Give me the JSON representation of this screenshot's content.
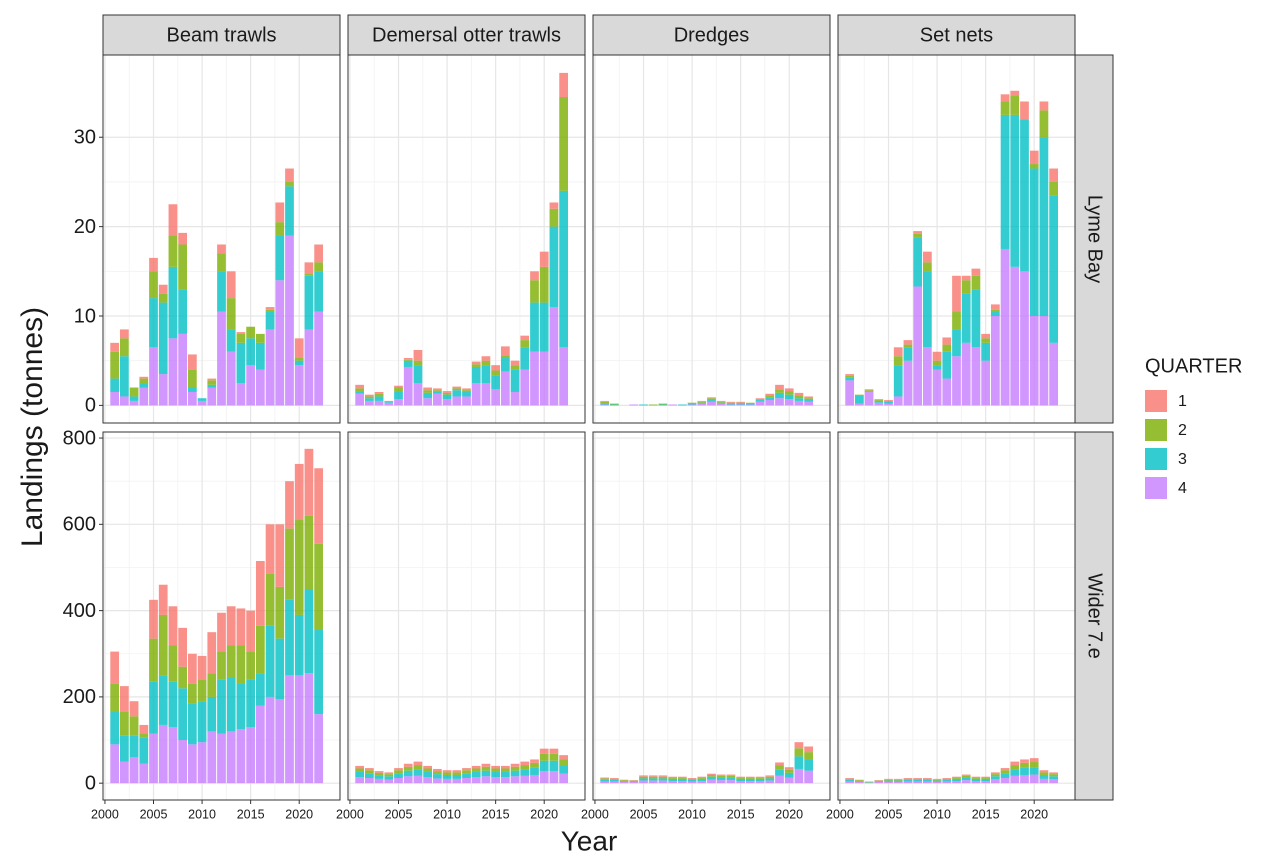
{
  "chart_data": {
    "type": "bar",
    "stacked": true,
    "x_label": "Year",
    "y_label": "Landings (tonnes)",
    "legend_title": "QUARTER",
    "legend_position": "right",
    "grid": true,
    "x": [
      2001,
      2002,
      2003,
      2004,
      2005,
      2006,
      2007,
      2008,
      2009,
      2010,
      2011,
      2012,
      2013,
      2014,
      2015,
      2016,
      2017,
      2018,
      2019,
      2020,
      2021,
      2022
    ],
    "xlim": [
      1999.8,
      2024.2
    ],
    "xticks": [
      2000,
      2005,
      2010,
      2015,
      2020
    ],
    "series": [
      {
        "name": "1",
        "color": "#F8766D"
      },
      {
        "name": "2",
        "color": "#7CAE00"
      },
      {
        "name": "3",
        "color": "#00BFC4"
      },
      {
        "name": "4",
        "color": "#C77CFF"
      }
    ],
    "columns": [
      "Beam trawls",
      "Demersal otter trawls",
      "Dredges",
      "Set nets"
    ],
    "rows": [
      {
        "label": "Lyme Bay",
        "ylim": [
          -1.97,
          39.2
        ],
        "yticks": [
          0,
          10,
          20,
          30
        ],
        "panels": [
          {
            "series": [
              {
                "values": [
                  1,
                  1,
                  0,
                  0.2,
                  1.5,
                  1,
                  3.5,
                  1.3,
                  1.7,
                  0,
                  0.2,
                  1,
                  3,
                  0.2,
                  0,
                  0,
                  0.3,
                  2.2,
                  1.5,
                  2.2,
                  1.3,
                  2
                ]
              },
              {
                "values": [
                  3,
                  2,
                  1,
                  0.5,
                  3,
                  1,
                  3.5,
                  5,
                  2,
                  0,
                  0.5,
                  2,
                  3.5,
                  1,
                  1.3,
                  1,
                  0.2,
                  1.5,
                  0.5,
                  0.3,
                  0.2,
                  1
                ]
              },
              {
                "values": [
                  1.5,
                  4.5,
                  0.5,
                  0.5,
                  5.5,
                  8,
                  8,
                  5,
                  0.5,
                  0.3,
                  0.3,
                  4.5,
                  2.5,
                  4.5,
                  3,
                  3,
                  2,
                  5,
                  5.5,
                  0.5,
                  6,
                  4.5
                ]
              },
              {
                "values": [
                  1.5,
                  1,
                  0.5,
                  2,
                  6.5,
                  3.5,
                  7.5,
                  8,
                  1.5,
                  0.5,
                  2,
                  10.5,
                  6,
                  2.5,
                  4.5,
                  4,
                  8.5,
                  14,
                  19,
                  4.5,
                  8.5,
                  10.5
                ]
              }
            ]
          },
          {
            "series": [
              {
                "values": [
                  0.4,
                  0.2,
                  0.2,
                  0,
                  0.2,
                  0.2,
                  1.2,
                  0.3,
                  0.2,
                  0.2,
                  0.2,
                  0.2,
                  0.3,
                  0.5,
                  0.6,
                  1,
                  0.5,
                  0.5,
                  1,
                  1.7,
                  0.7,
                  2.7
                ]
              },
              {
                "values": [
                  0.3,
                  0.2,
                  0.3,
                  0.1,
                  0.5,
                  0.1,
                  0.5,
                  0.3,
                  0.1,
                  0.2,
                  0.2,
                  0.2,
                  0.3,
                  0.5,
                  0.6,
                  0.3,
                  0.5,
                  0.8,
                  2.5,
                  4,
                  2,
                  10.5
                ]
              },
              {
                "values": [
                  0.3,
                  0.3,
                  0.5,
                  0.1,
                  0.8,
                  0.7,
                  2,
                  0.6,
                  0.3,
                  0.5,
                  0.7,
                  0.5,
                  1.8,
                  2,
                  1.5,
                  1.5,
                  2.5,
                  2.5,
                  5.5,
                  5.5,
                  9,
                  17.5
                ]
              },
              {
                "values": [
                  1.3,
                  0.5,
                  0.5,
                  0.3,
                  0.7,
                  4.3,
                  2.5,
                  0.8,
                  1.3,
                  0.7,
                  1,
                  1,
                  2.5,
                  2.5,
                  1.8,
                  3.8,
                  1.5,
                  4,
                  6,
                  6,
                  11,
                  6.5
                ]
              }
            ]
          },
          {
            "series": [
              {
                "values": [
                  0.1,
                  0,
                  0,
                  0,
                  0,
                  0,
                  0,
                  0,
                  0,
                  0,
                  0.1,
                  0.1,
                  0.1,
                  0.1,
                  0.1,
                  0,
                  0.1,
                  0.2,
                  0.5,
                  0.3,
                  0.3,
                  0.2
                ]
              },
              {
                "values": [
                  0.2,
                  0.1,
                  0,
                  0,
                  0,
                  0.1,
                  0.1,
                  0,
                  0,
                  0.1,
                  0.1,
                  0.2,
                  0.1,
                  0.1,
                  0.1,
                  0.1,
                  0.1,
                  0.2,
                  0.4,
                  0.4,
                  0.3,
                  0.2
                ]
              },
              {
                "values": [
                  0.1,
                  0.1,
                  0,
                  0,
                  0.1,
                  0,
                  0.1,
                  0,
                  0.1,
                  0.1,
                  0.1,
                  0.2,
                  0.1,
                  0.1,
                  0.1,
                  0.1,
                  0.2,
                  0.3,
                  0.6,
                  0.5,
                  0.3,
                  0.2
                ]
              },
              {
                "values": [
                  0.1,
                  0,
                  0,
                  0.1,
                  0,
                  0,
                  0,
                  0.1,
                  0,
                  0.1,
                  0.2,
                  0.4,
                  0.2,
                  0.1,
                  0.1,
                  0.1,
                  0.4,
                  0.6,
                  0.8,
                  0.7,
                  0.5,
                  0.4
                ]
              }
            ]
          },
          {
            "series": [
              {
                "values": [
                  0.2,
                  0,
                  0.1,
                  0.1,
                  0.1,
                  1,
                  0.5,
                  0.3,
                  1.2,
                  1,
                  0.8,
                  4,
                  0.5,
                  0.8,
                  0.5,
                  0.6,
                  0.8,
                  0.5,
                  2,
                  1.5,
                  1,
                  1.5
                ]
              },
              {
                "values": [
                  0.2,
                  0.1,
                  0.1,
                  0.1,
                  0.1,
                  1,
                  0.3,
                  0.4,
                  1,
                  0.5,
                  0.8,
                  2,
                  1.5,
                  1.5,
                  0.5,
                  0.2,
                  1.5,
                  2.2,
                  0,
                  0.5,
                  3,
                  1.5
                ]
              },
              {
                "values": [
                  0.3,
                  0.9,
                  0.1,
                  0.2,
                  0.2,
                  3.5,
                  1.5,
                  5.5,
                  8.5,
                  0.5,
                  3,
                  3,
                  5.5,
                  6.5,
                  2,
                  0.5,
                  15,
                  17,
                  17,
                  16.5,
                  20,
                  16.5
                ]
              },
              {
                "values": [
                  2.8,
                  0.2,
                  1.5,
                  0.3,
                  0.2,
                  1,
                  5,
                  13.3,
                  6.5,
                  4,
                  3,
                  5.5,
                  7,
                  6.5,
                  5,
                  10,
                  17.5,
                  15.5,
                  15,
                  10,
                  10,
                  7
                ]
              }
            ]
          }
        ]
      },
      {
        "label": "Wider 7.e",
        "ylim": [
          -39,
          814
        ],
        "yticks": [
          0,
          200,
          400,
          600,
          800
        ],
        "panels": [
          {
            "series": [
              {
                "values": [
                  75,
                  60,
                  35,
                  20,
                  90,
                  70,
                  90,
                  90,
                  70,
                  55,
                  95,
                  90,
                  90,
                  85,
                  95,
                  150,
                  115,
                  145,
                  110,
                  130,
                  155,
                  175
                ]
              },
              {
                "values": [
                  65,
                  55,
                  45,
                  10,
                  100,
                  140,
                  85,
                  50,
                  45,
                  50,
                  55,
                  65,
                  75,
                  90,
                  65,
                  110,
                  120,
                  120,
                  165,
                  220,
                  170,
                  200
                ]
              },
              {
                "values": [
                  75,
                  60,
                  50,
                  60,
                  120,
                  115,
                  105,
                  120,
                  95,
                  95,
                  80,
                  125,
                  125,
                  105,
                  110,
                  75,
                  165,
                  140,
                  175,
                  140,
                  195,
                  195
                ]
              },
              {
                "values": [
                  90,
                  50,
                  60,
                  45,
                  115,
                  135,
                  130,
                  100,
                  90,
                  95,
                  120,
                  115,
                  120,
                  125,
                  130,
                  180,
                  200,
                  195,
                  250,
                  250,
                  255,
                  160
                ]
              }
            ]
          },
          {
            "series": [
              {
                "values": [
                  6,
                  5,
                  4,
                  4,
                  5,
                  7,
                  8,
                  6,
                  5,
                  5,
                  5,
                  5,
                  6,
                  7,
                  6,
                  6,
                  7,
                  8,
                  8,
                  12,
                  12,
                  10
                ]
              },
              {
                "values": [
                  8,
                  7,
                  6,
                  5,
                  7,
                  9,
                  10,
                  8,
                  7,
                  6,
                  6,
                  7,
                  8,
                  9,
                  8,
                  8,
                  9,
                  10,
                  11,
                  16,
                  16,
                  13
                ]
              },
              {
                "values": [
                  12,
                  11,
                  8,
                  8,
                  11,
                  13,
                  15,
                  12,
                  10,
                  9,
                  9,
                  11,
                  12,
                  13,
                  12,
                  12,
                  13,
                  15,
                  17,
                  24,
                  24,
                  20
                ]
              },
              {
                "values": [
                  14,
                  12,
                  10,
                  8,
                  12,
                  16,
                  17,
                  14,
                  11,
                  10,
                  10,
                  12,
                  14,
                  16,
                  14,
                  14,
                  16,
                  17,
                  19,
                  28,
                  28,
                  22
                ]
              }
            ]
          },
          {
            "series": [
              {
                "values": [
                  2,
                  2,
                  1,
                  1,
                  3,
                  3,
                  3,
                  2,
                  2,
                  2,
                  2,
                  3,
                  3,
                  3,
                  2,
                  2,
                  2,
                  3,
                  7,
                  6,
                  14,
                  13
                ]
              },
              {
                "values": [
                  3,
                  2,
                  2,
                  1,
                  4,
                  4,
                  4,
                  3,
                  3,
                  2,
                  3,
                  4,
                  4,
                  4,
                  3,
                  3,
                  3,
                  4,
                  10,
                  7,
                  19,
                  17
                ]
              },
              {
                "values": [
                  4,
                  4,
                  2,
                  2,
                  5,
                  5,
                  5,
                  5,
                  5,
                  4,
                  5,
                  7,
                  6,
                  6,
                  5,
                  5,
                  5,
                  5,
                  14,
                  11,
                  29,
                  26
                ]
              },
              {
                "values": [
                  4,
                  4,
                  3,
                  3,
                  6,
                  6,
                  6,
                  5,
                  5,
                  4,
                  5,
                  8,
                  7,
                  7,
                  5,
                  5,
                  5,
                  6,
                  17,
                  13,
                  33,
                  29
                ]
              }
            ]
          },
          {
            "series": [
              {
                "values": [
                  2,
                  1,
                  1,
                  1,
                  2,
                  2,
                  2,
                  2,
                  2,
                  2,
                  2,
                  2,
                  3,
                  2,
                  2,
                  4,
                  5,
                  8,
                  8,
                  9,
                  5,
                  4
                ]
              },
              {
                "values": [
                  2,
                  2,
                  1,
                  1,
                  2,
                  2,
                  2,
                  2,
                  2,
                  2,
                  2,
                  3,
                  4,
                  3,
                  3,
                  5,
                  7,
                  10,
                  11,
                  12,
                  6,
                  5
                ]
              },
              {
                "values": [
                  4,
                  2,
                  1,
                  2,
                  3,
                  3,
                  4,
                  4,
                  4,
                  3,
                  4,
                  5,
                  6,
                  5,
                  5,
                  7,
                  11,
                  15,
                  17,
                  17,
                  9,
                  7
                ]
              },
              {
                "values": [
                  4,
                  3,
                  1,
                  3,
                  3,
                  3,
                  4,
                  4,
                  4,
                  3,
                  4,
                  5,
                  7,
                  5,
                  5,
                  9,
                  12,
                  17,
                  19,
                  20,
                  10,
                  9
                ]
              }
            ]
          }
        ]
      }
    ]
  }
}
